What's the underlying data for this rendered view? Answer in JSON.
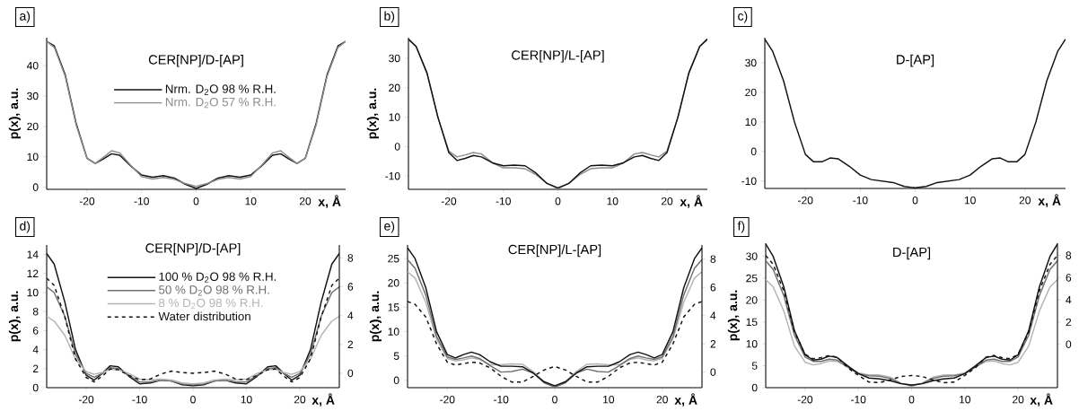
{
  "chart_data": [
    {
      "type": "line",
      "title": "CER[NP]/D-[AP]",
      "annotations": [
        "a)"
      ],
      "xlabel": "x, Å",
      "ylabel": "p(x), a.u.",
      "xlim": [
        -27.4,
        27.4
      ],
      "ylim": [
        -0.7,
        49.2
      ],
      "xticks": [
        -20,
        -10,
        0,
        10,
        20
      ],
      "yticks": [
        0,
        10,
        20,
        30,
        40
      ],
      "legend": "top",
      "x": [
        -27.4,
        -26,
        -24,
        -22,
        -20,
        -18.5,
        -17,
        -15.5,
        -14,
        -12,
        -10,
        -8,
        -6,
        -4,
        -2,
        0,
        2,
        4,
        6,
        8,
        10,
        12,
        14,
        15.5,
        17,
        18.5,
        20,
        22,
        24,
        26,
        27.4
      ],
      "series": [
        {
          "name": "Nrm. D$_{2}$O 98 % R.H.",
          "color": "#111111",
          "values": [
            48,
            46.5,
            37,
            21,
            9.5,
            7.8,
            9.3,
            11,
            10.5,
            7,
            4,
            3.3,
            3.8,
            3,
            1,
            -0.4,
            1,
            3,
            3.8,
            3.3,
            4,
            7,
            10.5,
            11,
            9.3,
            7.8,
            9.5,
            21,
            37,
            46.5,
            48
          ]
        },
        {
          "name": "Nrm. D$_{2}$O 57 % R.H.",
          "color": "#8c8c8c",
          "values": [
            48,
            46,
            36.5,
            20.5,
            9.5,
            7.8,
            9.8,
            12,
            11.3,
            7.2,
            3.5,
            2.7,
            3.2,
            2.6,
            1.2,
            0.3,
            1.2,
            2.6,
            3.2,
            2.7,
            3.5,
            7.2,
            11.3,
            12,
            9.8,
            7.8,
            9.5,
            20.5,
            36.5,
            46,
            48
          ]
        }
      ]
    },
    {
      "type": "line",
      "title": "CER[NP]/L-[AP]",
      "annotations": [
        "b)"
      ],
      "xlabel": "x, Å",
      "ylabel": "p(x), a.u.",
      "xlim": [
        -27.4,
        27.4
      ],
      "ylim": [
        -14.5,
        37
      ],
      "xticks": [
        -20,
        -10,
        0,
        10,
        20
      ],
      "yticks": [
        -10,
        0,
        10,
        20,
        30
      ],
      "x": [
        -27.4,
        -26,
        -24,
        -22,
        -20,
        -18.5,
        -17,
        -15.5,
        -14,
        -12,
        -10,
        -8,
        -6,
        -4,
        -2,
        0,
        2,
        4,
        6,
        8,
        10,
        12,
        14,
        15.5,
        17,
        18.5,
        20,
        22,
        24,
        26,
        27.4
      ],
      "series": [
        {
          "color": "#8c8c8c",
          "values": [
            36.5,
            34,
            25,
            10,
            -1.5,
            -3.5,
            -2.8,
            -2,
            -2.5,
            -5.5,
            -7.2,
            -7.2,
            -7.5,
            -9.5,
            -12.5,
            -14.3,
            -12.5,
            -9.5,
            -7.5,
            -7.2,
            -7.2,
            -5.5,
            -2.5,
            -2,
            -2.8,
            -3.5,
            -1.5,
            10,
            25,
            34,
            36.5
          ]
        },
        {
          "color": "#111111",
          "values": [
            36.5,
            34,
            25,
            10,
            -2,
            -4.7,
            -4,
            -3,
            -3.5,
            -5.5,
            -6.5,
            -6.3,
            -6.5,
            -9,
            -12.5,
            -14,
            -12.5,
            -9,
            -6.5,
            -6.3,
            -6.5,
            -5.5,
            -3.5,
            -3,
            -4,
            -4.7,
            -2,
            10,
            25,
            34,
            36.5
          ]
        }
      ]
    },
    {
      "type": "line",
      "title": "D-[AP]",
      "annotations": [
        "c)"
      ],
      "xlabel": "x, Å",
      "xlim": [
        -27.4,
        27.4
      ],
      "ylim": [
        -12.5,
        38.5
      ],
      "xticks": [
        -20,
        -10,
        0,
        10,
        20
      ],
      "yticks": [
        -10,
        0,
        10,
        20,
        30
      ],
      "x": [
        -27.4,
        -26,
        -24,
        -22,
        -20,
        -18.5,
        -17,
        -15.5,
        -14,
        -12,
        -10,
        -8,
        -6,
        -4,
        -2,
        0,
        2,
        4,
        6,
        8,
        10,
        12,
        14,
        15.5,
        17,
        18.5,
        20,
        22,
        24,
        26,
        27.4
      ],
      "series": [
        {
          "color": "#111111",
          "values": [
            38,
            34,
            24,
            10,
            -1,
            -3.5,
            -3.5,
            -2.2,
            -2.5,
            -5,
            -8,
            -9.5,
            -10,
            -10.5,
            -11.8,
            -12.3,
            -11.8,
            -10.5,
            -10,
            -9.5,
            -8,
            -5,
            -2.5,
            -2.2,
            -3.5,
            -3.5,
            -1,
            10,
            24,
            34,
            38
          ]
        }
      ]
    },
    {
      "type": "line",
      "title": "CER[NP]/D-[AP]",
      "annotations": [
        "d)"
      ],
      "xlabel": "x, Å",
      "ylabel": "p(x), a.u.",
      "xlim": [
        -27.4,
        27.4
      ],
      "ylim": [
        0,
        15
      ],
      "xticks": [
        -20,
        -10,
        0,
        10,
        20
      ],
      "yticks": [
        0,
        2,
        4,
        6,
        8,
        10,
        12,
        14
      ],
      "y2lim": [
        -1,
        8.9
      ],
      "y2ticks": [
        0,
        2,
        4,
        6,
        8
      ],
      "legend": "top",
      "x": [
        -27.4,
        -26,
        -24,
        -22,
        -20,
        -18.5,
        -17,
        -15.5,
        -14,
        -12,
        -10,
        -8,
        -6,
        -4,
        -2,
        0,
        2,
        4,
        6,
        8,
        10,
        12,
        14,
        15.5,
        17,
        18.5,
        20,
        22,
        24,
        26,
        27.4
      ],
      "series": [
        {
          "name": "100 % D$_{2}$O 98 % R.H.",
          "color": "#111111",
          "values": [
            14.1,
            13,
            9,
            4,
            1.3,
            0.8,
            1.5,
            2.3,
            2.2,
            1.2,
            0.4,
            0.5,
            0.8,
            0.7,
            0.3,
            0.2,
            0.3,
            0.7,
            0.8,
            0.5,
            0.4,
            1.2,
            2.2,
            2.3,
            1.5,
            0.8,
            1.3,
            4,
            9,
            13,
            14.1
          ]
        },
        {
          "name": "50 % D$_{2}$O 98 % R.H.",
          "color": "#707070",
          "values": [
            10.6,
            10,
            7.5,
            3.5,
            1.5,
            1.1,
            1.5,
            2.1,
            2,
            1.3,
            0.6,
            0.6,
            0.8,
            0.7,
            0.4,
            0.3,
            0.4,
            0.7,
            0.8,
            0.6,
            0.6,
            1.3,
            2,
            2.1,
            1.5,
            1.1,
            1.5,
            3.5,
            7.5,
            10,
            10.6
          ]
        },
        {
          "name": "8 % D$_{2}$O 98 % R.H.",
          "color": "#b4b4b4",
          "values": [
            7.5,
            7,
            5.5,
            3,
            1.7,
            1.4,
            1.6,
            1.9,
            1.9,
            1.5,
            0.9,
            0.8,
            0.9,
            0.8,
            0.5,
            0.4,
            0.5,
            0.8,
            0.9,
            0.8,
            0.9,
            1.5,
            1.9,
            1.9,
            1.6,
            1.4,
            1.7,
            3,
            5.5,
            7,
            7.5
          ]
        },
        {
          "name": "Water distribution",
          "color": "#111111",
          "line_style": "dashed",
          "axis": "y2",
          "values": [
            6.6,
            6.1,
            3.9,
            1,
            -0.3,
            -0.6,
            -0.2,
            0.3,
            0.25,
            -0.15,
            -0.45,
            -0.4,
            -0.05,
            0.15,
            0.05,
            0,
            0.05,
            0.15,
            -0.05,
            -0.4,
            -0.45,
            -0.15,
            0.25,
            0.3,
            -0.2,
            -0.6,
            -0.3,
            1,
            3.9,
            6.1,
            6.6
          ]
        }
      ]
    },
    {
      "type": "line",
      "title": "CER[NP]/L-[AP]",
      "annotations": [
        "e)"
      ],
      "xlabel": "x, Å",
      "ylabel": "p(x), a.u.",
      "xlim": [
        -27.4,
        27.4
      ],
      "ylim": [
        -1.5,
        27.8
      ],
      "xticks": [
        -20,
        -10,
        0,
        10,
        20
      ],
      "yticks": [
        0,
        5,
        10,
        15,
        20,
        25
      ],
      "y2lim": [
        -1.1,
        9
      ],
      "y2ticks": [
        0,
        2,
        4,
        6,
        8
      ],
      "x": [
        -27.4,
        -26,
        -24,
        -22,
        -20,
        -18.5,
        -17,
        -15.5,
        -14,
        -12,
        -10,
        -8,
        -6,
        -4,
        -2,
        0,
        2,
        4,
        6,
        8,
        10,
        12,
        14,
        15.5,
        17,
        18.5,
        20,
        22,
        24,
        26,
        27.4
      ],
      "series": [
        {
          "color": "#b4b4b4",
          "values": [
            22.3,
            21,
            16,
            8.5,
            4.5,
            4,
            4.2,
            4.6,
            4.3,
            3.2,
            3.2,
            3.4,
            3.3,
            1.8,
            -0.2,
            -1.2,
            -0.2,
            1.8,
            3.3,
            3.4,
            3.2,
            3.2,
            4.3,
            4.6,
            4.2,
            4,
            4.5,
            8.5,
            16,
            21,
            22.3
          ]
        },
        {
          "color": "#707070",
          "values": [
            24.8,
            23,
            17.5,
            9,
            4.8,
            4.3,
            4.6,
            5,
            4.5,
            3,
            1.7,
            1.8,
            2.3,
            1.5,
            -0.5,
            -1.4,
            -0.5,
            1.5,
            2.3,
            1.8,
            1.7,
            3,
            4.5,
            5,
            4.6,
            4.3,
            4.8,
            9,
            17.5,
            23,
            24.8
          ]
        },
        {
          "color": "#111111",
          "values": [
            27.2,
            25,
            19,
            10,
            5.3,
            4.6,
            5.3,
            5.8,
            5.3,
            3.8,
            2.9,
            2.9,
            2.8,
            1.5,
            -0.3,
            -1.1,
            -0.3,
            1.5,
            2.8,
            2.9,
            2.9,
            3.8,
            5.3,
            5.8,
            5.3,
            4.6,
            5.3,
            10,
            19,
            25,
            27.2
          ]
        },
        {
          "color": "#111111",
          "line_style": "dashed",
          "axis": "y2",
          "values": [
            5,
            4.8,
            3.9,
            2,
            0.7,
            0.5,
            0.6,
            0.7,
            0.65,
            0.3,
            -0.3,
            -0.7,
            -0.7,
            -0.3,
            0.15,
            0.4,
            0.15,
            -0.3,
            -0.7,
            -0.7,
            -0.3,
            0.3,
            0.65,
            0.7,
            0.6,
            0.5,
            0.7,
            2,
            3.9,
            4.8,
            5
          ]
        }
      ]
    },
    {
      "type": "line",
      "title": "D-[AP]",
      "annotations": [
        "f)"
      ],
      "xlabel": "x, Å",
      "ylabel": "p(x), a.u.",
      "xlim": [
        -27.4,
        27.4
      ],
      "ylim": [
        0,
        33
      ],
      "xticks": [
        -20,
        -10,
        0,
        10,
        20
      ],
      "yticks": [
        0,
        5,
        10,
        15,
        20,
        25,
        30
      ],
      "y2lim": [
        -3.9,
        9.1
      ],
      "y2ticks": [
        0,
        2,
        4,
        6,
        8
      ],
      "x": [
        -27.4,
        -26,
        -24,
        -22,
        -20,
        -18.5,
        -17,
        -15.5,
        -14,
        -12,
        -10,
        -8,
        -6,
        -4,
        -2,
        0,
        2,
        4,
        6,
        8,
        10,
        12,
        14,
        15.5,
        17,
        18.5,
        20,
        22,
        24,
        26,
        27.4
      ],
      "series": [
        {
          "color": "#b4b4b4",
          "values": [
            24.7,
            23,
            17.5,
            9.5,
            5.8,
            5.2,
            5.5,
            6.1,
            6,
            4.8,
            3.4,
            2.9,
            2.9,
            2.4,
            1,
            0.3,
            1,
            2.4,
            2.9,
            2.9,
            3.4,
            4.8,
            6,
            6.1,
            5.5,
            5.2,
            5.8,
            9.5,
            17.5,
            23,
            24.7
          ]
        },
        {
          "color": "#707070",
          "values": [
            29,
            27,
            21,
            12,
            7,
            6,
            6,
            6.5,
            6.3,
            4.7,
            3.2,
            2.7,
            2.6,
            2.1,
            1,
            0.5,
            1,
            2.1,
            2.6,
            2.7,
            3.2,
            4.7,
            6.3,
            6.5,
            6,
            6,
            7,
            12,
            21,
            27,
            29
          ]
        },
        {
          "color": "#111111",
          "values": [
            32.8,
            30,
            23,
            13,
            7.5,
            6.3,
            6.5,
            7.2,
            6.9,
            5,
            3.2,
            2.2,
            2,
            1.6,
            0.9,
            0.6,
            0.9,
            1.6,
            2,
            2.2,
            3.2,
            5,
            6.9,
            7.2,
            6.5,
            6.3,
            7.5,
            13,
            23,
            30,
            32.8
          ]
        },
        {
          "color": "#111111",
          "line_style": "dashed",
          "axis": "y2",
          "values": [
            8,
            7.2,
            4.8,
            1.1,
            -0.9,
            -1.3,
            -1.2,
            -1,
            -1.15,
            -2.1,
            -2.8,
            -3.4,
            -3.45,
            -3.2,
            -2.9,
            -2.8,
            -2.9,
            -3.2,
            -3.45,
            -3.4,
            -2.8,
            -2.1,
            -1.15,
            -1,
            -1.2,
            -1.3,
            -0.9,
            1.1,
            4.8,
            7.2,
            8
          ]
        }
      ]
    }
  ]
}
